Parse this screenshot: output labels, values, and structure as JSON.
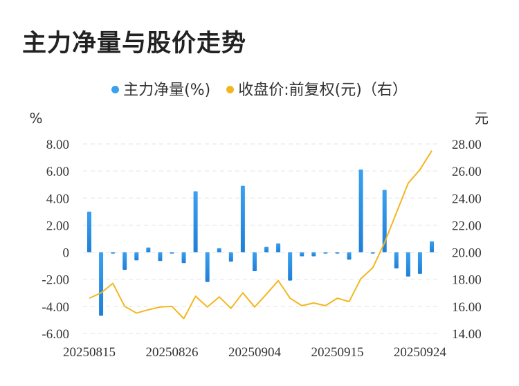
{
  "title": "主力净量与股价走势",
  "legend": {
    "series1": "主力净量(%)",
    "series2": "收盘价:前复权(元)（右）"
  },
  "colors": {
    "bar_top": "#3aa0f0",
    "bar_bottom": "#1f7fd6",
    "line": "#f3b61f",
    "grid": "#e3e3e3"
  },
  "chart_data": {
    "type": "bar+line",
    "left_axis_unit": "%",
    "right_axis_unit": "元",
    "left_ylim": [
      -6,
      8
    ],
    "right_ylim": [
      14,
      28
    ],
    "left_ticks": [
      "8.00",
      "6.00",
      "4.00",
      "2.00",
      "0",
      "-2.00",
      "-4.00",
      "-6.00"
    ],
    "right_ticks": [
      "28.00",
      "26.00",
      "24.00",
      "22.00",
      "20.00",
      "18.00",
      "16.00",
      "14.00"
    ],
    "x_tick_labels": [
      "20250815",
      "20250826",
      "20250904",
      "20250915",
      "20250924"
    ],
    "x_tick_indices": [
      0,
      7,
      14,
      21,
      28
    ],
    "series": [
      {
        "name": "主力净量(%)",
        "type": "bar",
        "axis": "left",
        "values": [
          3.0,
          -4.7,
          -0.05,
          -1.3,
          -0.6,
          0.35,
          -0.65,
          -0.1,
          -0.8,
          4.5,
          -2.2,
          0.3,
          -0.7,
          4.9,
          -1.4,
          0.4,
          0.65,
          -2.1,
          -0.3,
          -0.3,
          -0.1,
          -0.1,
          -0.55,
          6.1,
          -0.1,
          4.6,
          -1.2,
          -1.8,
          -1.6,
          0.8
        ]
      },
      {
        "name": "收盘价:前复权(元)（右）",
        "type": "line",
        "axis": "right",
        "values": [
          16.6,
          17.0,
          17.7,
          16.0,
          15.5,
          15.75,
          15.95,
          16.0,
          15.1,
          16.75,
          15.95,
          16.7,
          15.85,
          17.0,
          15.95,
          16.9,
          17.9,
          16.6,
          16.05,
          16.25,
          16.05,
          16.6,
          16.35,
          18.05,
          18.85,
          20.7,
          22.9,
          25.1,
          26.1,
          27.5
        ]
      }
    ]
  }
}
